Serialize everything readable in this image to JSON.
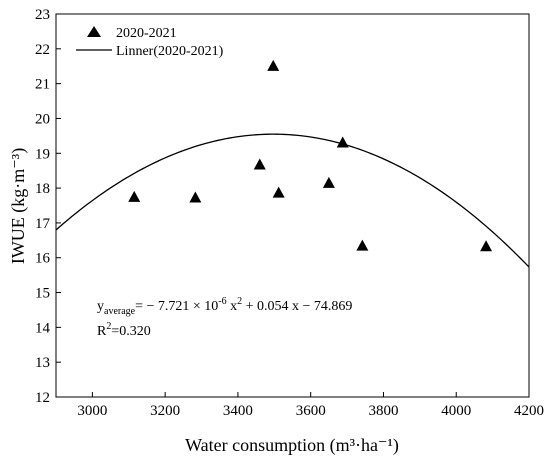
{
  "chart_data": {
    "type": "scatter",
    "xlabel": "Water consumption (m³·ha⁻¹)",
    "ylabel": "IWUE (kg·m⁻³)",
    "xlim": [
      2900,
      4200
    ],
    "ylim": [
      12,
      23
    ],
    "xticks": [
      "3000",
      "3200",
      "3400",
      "3600",
      "3800",
      "4000",
      "4200"
    ],
    "xtick_values": [
      3000,
      3200,
      3400,
      3600,
      3800,
      4000,
      4200
    ],
    "yticks": [
      "12",
      "13",
      "14",
      "15",
      "16",
      "17",
      "18",
      "19",
      "20",
      "21",
      "22",
      "23"
    ],
    "ytick_values": [
      12,
      13,
      14,
      15,
      16,
      17,
      18,
      19,
      20,
      21,
      22,
      23
    ],
    "series": [
      {
        "name": "2020-2021",
        "marker": "triangle",
        "color": "#000000",
        "points": [
          {
            "x": 3115,
            "y": 17.72
          },
          {
            "x": 3283,
            "y": 17.7
          },
          {
            "x": 3460,
            "y": 18.65
          },
          {
            "x": 3497,
            "y": 21.48
          },
          {
            "x": 3512,
            "y": 17.84
          },
          {
            "x": 3650,
            "y": 18.12
          },
          {
            "x": 3688,
            "y": 19.28
          },
          {
            "x": 3742,
            "y": 16.32
          },
          {
            "x": 4082,
            "y": 16.3
          }
        ]
      }
    ],
    "fit": {
      "name": "Linner(2020-2021)",
      "a": -7.721e-06,
      "b": 0.054,
      "c": -74.869,
      "x_range": [
        2900,
        4200
      ],
      "color": "#000000"
    },
    "legend": {
      "placement": "top-left",
      "items": [
        "2020-2021",
        "Linner(2020-2021)"
      ]
    },
    "annotation": {
      "equation_prefix": "y",
      "equation_subscript": "average",
      "equation_body_1": "= − 7.721 × 10",
      "equation_exp_1": "-6",
      "equation_body_2": " x",
      "equation_exp_2": "2",
      "equation_body_3": " + 0.054 x − 74.869",
      "r2_prefix": "R",
      "r2_exp": "2",
      "r2_value": "=0.320"
    }
  }
}
